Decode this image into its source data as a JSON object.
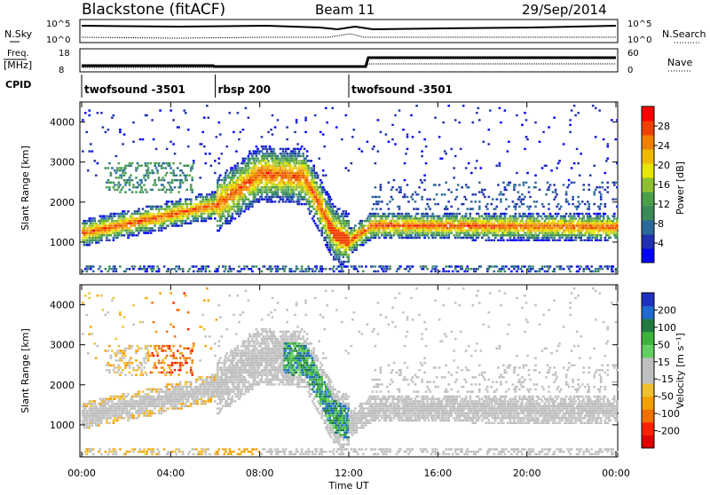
{
  "header": {
    "station": "Blackstone (fitACF)",
    "beam": "Beam 11",
    "date": "29/Sep/2014"
  },
  "panels": {
    "nsky_label": "N.Sky",
    "nsky_ticks": [
      "10^5",
      "10^0"
    ],
    "nsearch_label": "N.Search",
    "nsearch_ticks": [
      "10^5",
      "10^0"
    ],
    "freq_label_line1": "Freq.",
    "freq_label_line2": "[MHz]",
    "freq_ticks": [
      "18",
      "8"
    ],
    "nave_label": "Nave",
    "nave_ticks": [
      "60",
      "0"
    ],
    "cpid_label": "CPID",
    "cpid_segments": [
      {
        "start_hour": 0,
        "end_hour": 6,
        "label": "twofsound -3501"
      },
      {
        "start_hour": 6,
        "end_hour": 12,
        "label": "rbsp 200"
      },
      {
        "start_hour": 12,
        "end_hour": 24,
        "label": "twofsound -3501"
      }
    ]
  },
  "chart_data": [
    {
      "type": "heatmap",
      "name": "power",
      "ylabel": "Slant Range [km]",
      "yticks": [
        "1000",
        "2000",
        "3000",
        "4000"
      ],
      "ylim": [
        200,
        4500
      ],
      "xlim": [
        0,
        24
      ],
      "colorbar": {
        "label": "Power [dB]",
        "ticks": [
          "4",
          "8",
          "12",
          "16",
          "20",
          "24",
          "28"
        ],
        "range": [
          0,
          32
        ],
        "colors": [
          "#0000ff",
          "#2030b0",
          "#2a6a9a",
          "#3a8a5a",
          "#4aa04a",
          "#8fc030",
          "#e6e600",
          "#f0b800",
          "#f08000",
          "#f04000",
          "#ff0000"
        ]
      },
      "main_band": [
        {
          "hour": 0,
          "range_km": 1200
        },
        {
          "hour": 3,
          "range_km": 1550
        },
        {
          "hour": 5,
          "range_km": 1800
        },
        {
          "hour": 6,
          "range_km": 1900
        },
        {
          "hour": 7,
          "range_km": 2300
        },
        {
          "hour": 8,
          "range_km": 2700
        },
        {
          "hour": 10,
          "range_km": 2600
        },
        {
          "hour": 11.3,
          "range_km": 1200
        },
        {
          "hour": 12,
          "range_km": 1000
        },
        {
          "hour": 13,
          "range_km": 1400
        },
        {
          "hour": 24,
          "range_km": 1350
        }
      ]
    },
    {
      "type": "heatmap",
      "name": "velocity",
      "ylabel": "Slant Range [km]",
      "yticks": [
        "1000",
        "2000",
        "3000",
        "4000"
      ],
      "ylim": [
        200,
        4500
      ],
      "xlim": [
        0,
        24
      ],
      "xlabel": "Time UT",
      "xticks": [
        "00:00",
        "04:00",
        "08:00",
        "12:00",
        "16:00",
        "20:00",
        "00:00"
      ],
      "colorbar": {
        "label": "Velocity [m s⁻¹]",
        "ticks": [
          "200",
          "100",
          "50",
          "15",
          "-15",
          "-50",
          "-100",
          "-200"
        ],
        "colors": [
          "#2030c0",
          "#1f6ad0",
          "#207a40",
          "#3cb43c",
          "#60d060",
          "#bfbfbf",
          "#bfbfbf",
          "#f0c030",
          "#f5a000",
          "#f07000",
          "#ff2000",
          "#e00000"
        ]
      }
    }
  ]
}
